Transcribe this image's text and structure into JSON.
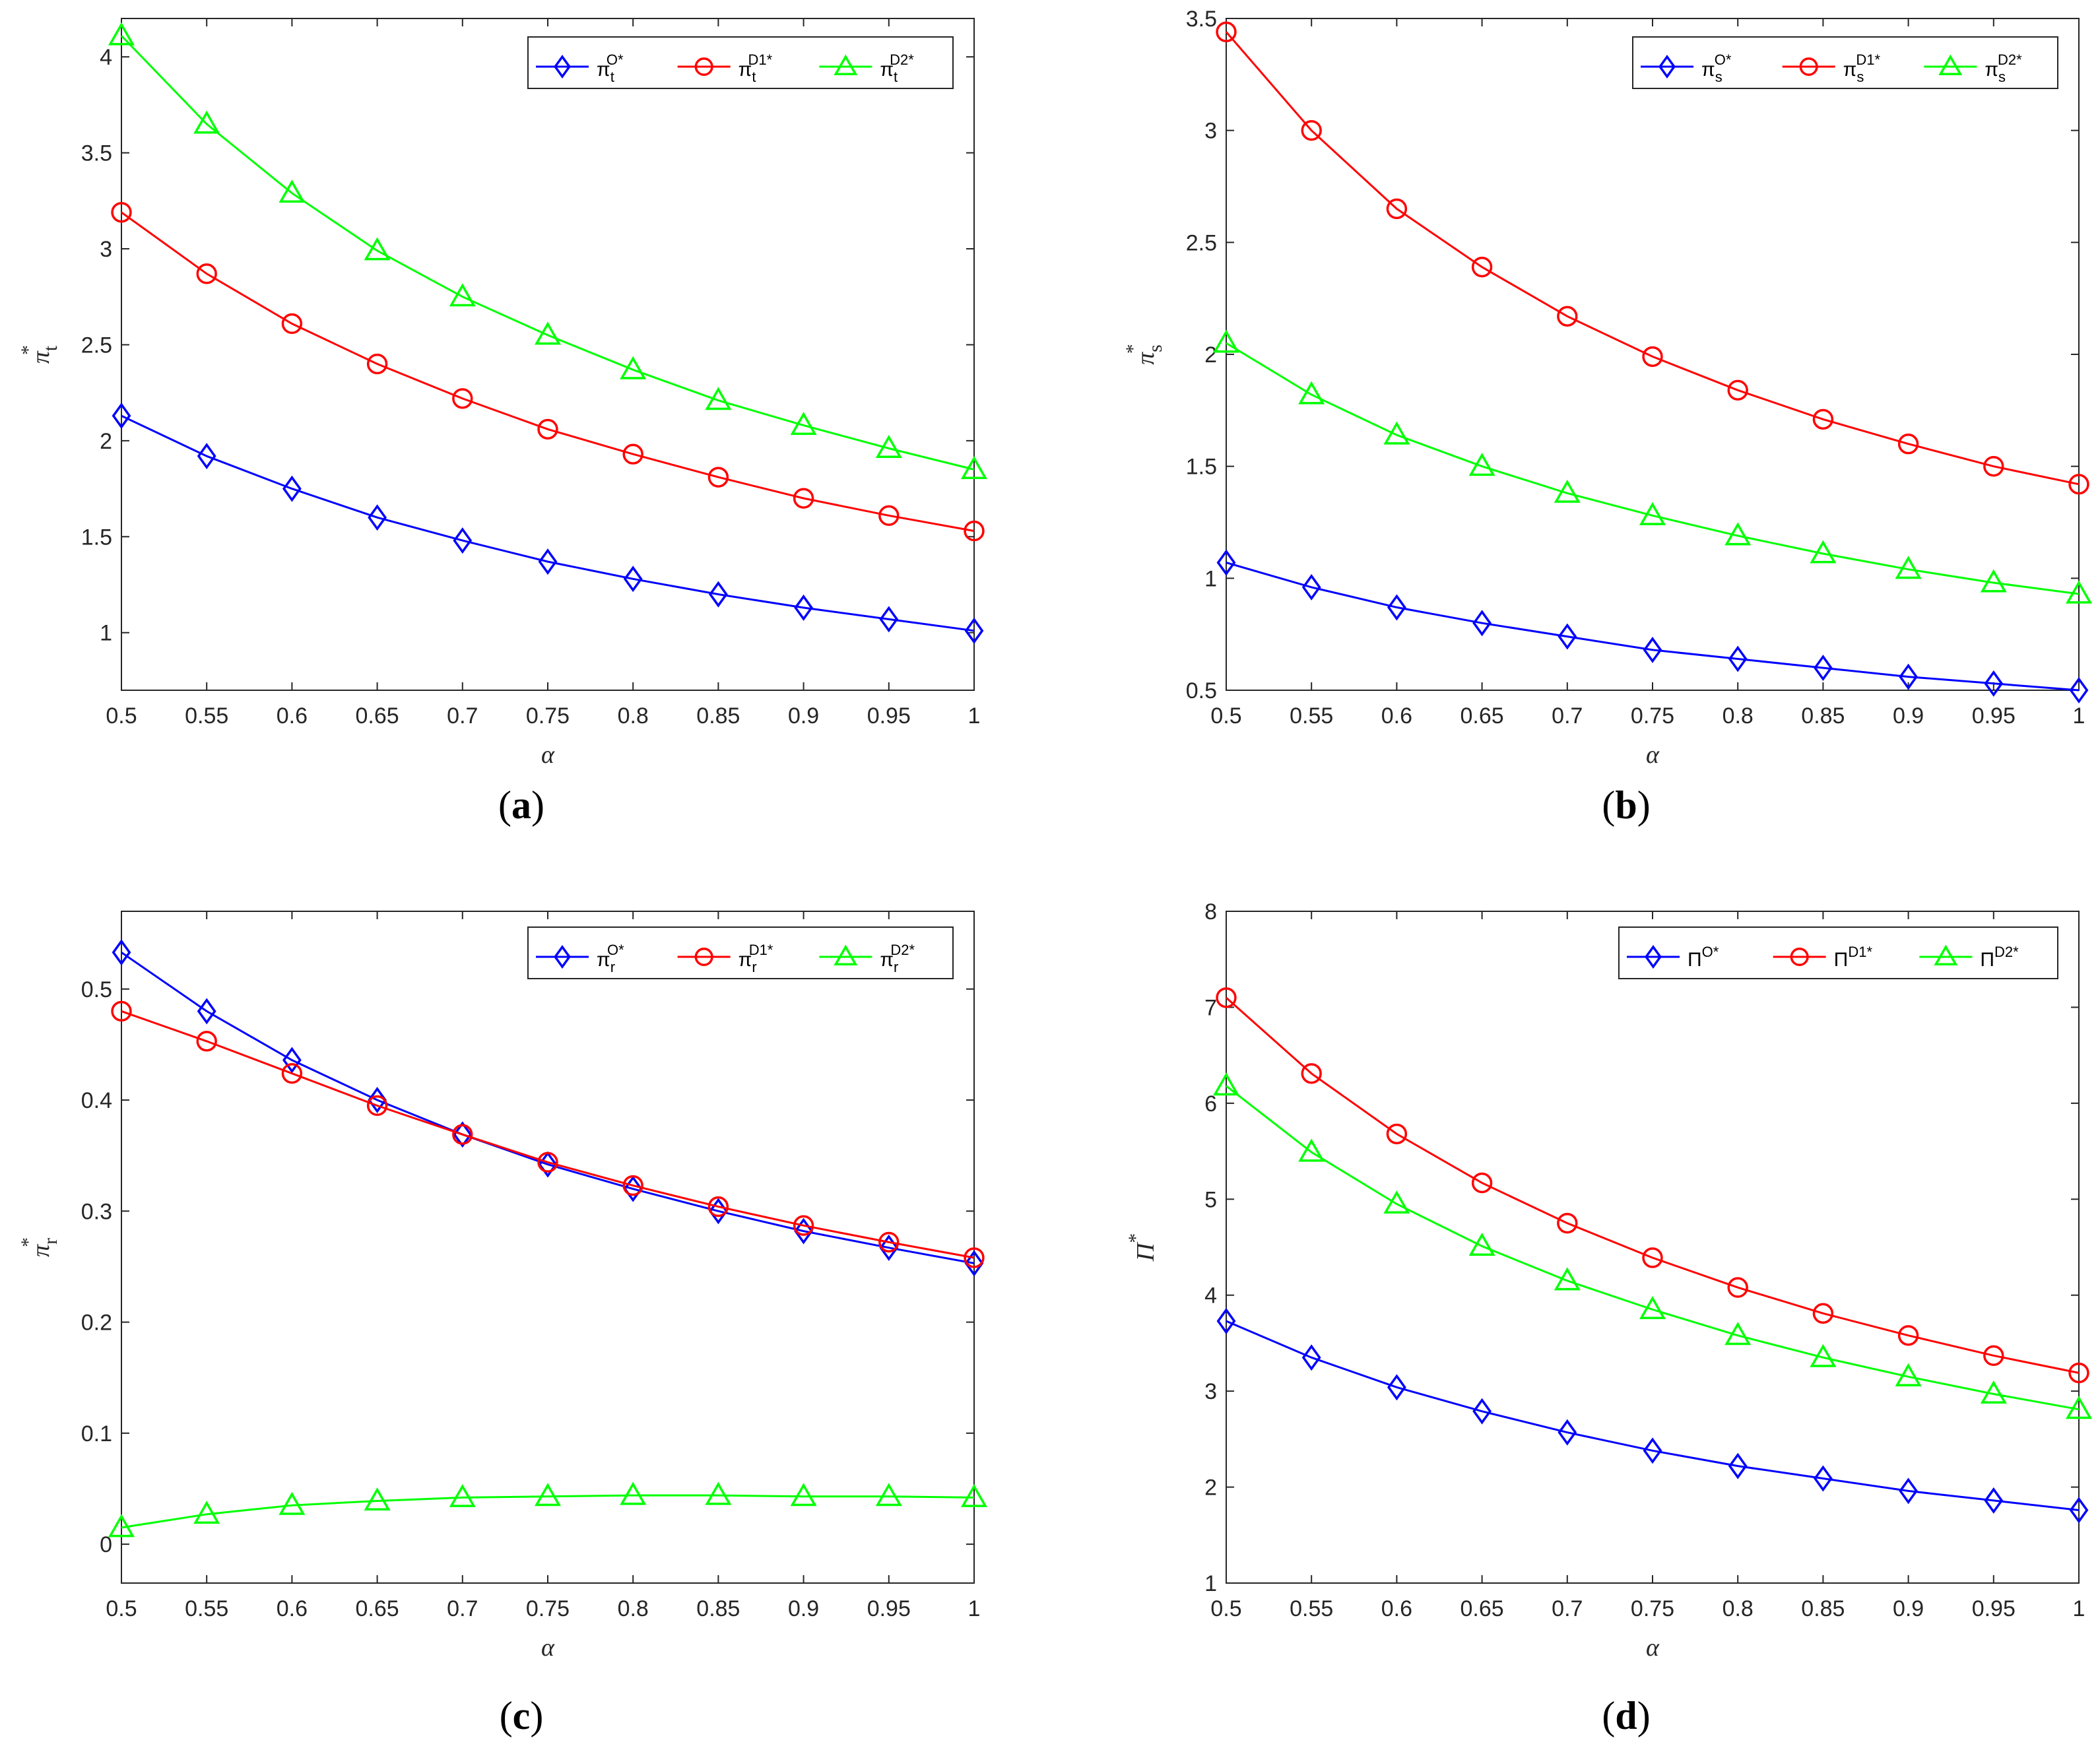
{
  "chart_data": [
    {
      "id": "a",
      "type": "line",
      "caption": {
        "open": "(",
        "letter": "a",
        "close": ")"
      },
      "xlabel": "α",
      "ylabel": {
        "base": "π",
        "sup": "*",
        "sub": "t"
      },
      "xlim": [
        0.5,
        1
      ],
      "ylim": [
        0.7,
        4.2
      ],
      "xticks": [
        "0.5",
        "0.55",
        "0.6",
        "0.65",
        "0.7",
        "0.75",
        "0.8",
        "0.85",
        "0.9",
        "0.95",
        "1"
      ],
      "yticks": [
        "1",
        "1.5",
        "2",
        "2.5",
        "3",
        "3.5",
        "4"
      ],
      "x": [
        0.5,
        0.55,
        0.6,
        0.65,
        0.7,
        0.75,
        0.8,
        0.85,
        0.9,
        0.95,
        1.0
      ],
      "series": [
        {
          "name": "π_t^{O*}",
          "base": "π",
          "sub": "t",
          "sup": "O*",
          "color": "#0000ff",
          "marker": "diamond",
          "values": [
            2.13,
            1.92,
            1.75,
            1.6,
            1.48,
            1.37,
            1.28,
            1.2,
            1.13,
            1.07,
            1.01
          ]
        },
        {
          "name": "π_t^{D1*}",
          "base": "π",
          "sub": "t",
          "sup": "D1*",
          "color": "#ff0000",
          "marker": "circle",
          "values": [
            3.19,
            2.87,
            2.61,
            2.4,
            2.22,
            2.06,
            1.93,
            1.81,
            1.7,
            1.61,
            1.53
          ]
        },
        {
          "name": "π_t^{D2*}",
          "base": "π",
          "sub": "t",
          "sup": "D2*",
          "color": "#00ff00",
          "marker": "triangle",
          "values": [
            4.11,
            3.65,
            3.29,
            2.99,
            2.75,
            2.55,
            2.37,
            2.21,
            2.08,
            1.96,
            1.85
          ]
        }
      ]
    },
    {
      "id": "b",
      "type": "line",
      "caption": {
        "open": "(",
        "letter": "b",
        "close": ")"
      },
      "xlabel": "α",
      "ylabel": {
        "base": "π",
        "sup": "*",
        "sub": "s"
      },
      "xlim": [
        0.5,
        1
      ],
      "ylim": [
        0.5,
        3.5
      ],
      "xticks": [
        "0.5",
        "0.55",
        "0.6",
        "0.65",
        "0.7",
        "0.75",
        "0.8",
        "0.85",
        "0.9",
        "0.95",
        "1"
      ],
      "yticks": [
        "0.5",
        "1",
        "1.5",
        "2",
        "2.5",
        "3",
        "3.5"
      ],
      "x": [
        0.5,
        0.55,
        0.6,
        0.65,
        0.7,
        0.75,
        0.8,
        0.85,
        0.9,
        0.95,
        1.0
      ],
      "series": [
        {
          "name": "π_s^{O*}",
          "base": "π",
          "sub": "s",
          "sup": "O*",
          "color": "#0000ff",
          "marker": "diamond",
          "values": [
            1.07,
            0.96,
            0.87,
            0.8,
            0.74,
            0.68,
            0.64,
            0.6,
            0.56,
            0.53,
            0.5
          ]
        },
        {
          "name": "π_s^{D1*}",
          "base": "π",
          "sub": "s",
          "sup": "D1*",
          "color": "#ff0000",
          "marker": "circle",
          "values": [
            3.44,
            3.0,
            2.65,
            2.39,
            2.17,
            1.99,
            1.84,
            1.71,
            1.6,
            1.5,
            1.42
          ]
        },
        {
          "name": "π_s^{D2*}",
          "base": "π",
          "sub": "s",
          "sup": "D2*",
          "color": "#00ff00",
          "marker": "triangle",
          "values": [
            2.05,
            1.82,
            1.64,
            1.5,
            1.38,
            1.28,
            1.19,
            1.11,
            1.04,
            0.98,
            0.93
          ]
        }
      ]
    },
    {
      "id": "c",
      "type": "line",
      "caption": {
        "open": "(",
        "letter": "c",
        "close": ")"
      },
      "xlabel": "α",
      "ylabel": {
        "base": "π",
        "sup": "*",
        "sub": "r"
      },
      "xlim": [
        0.5,
        1
      ],
      "ylim": [
        -0.035,
        0.57
      ],
      "xticks": [
        "0.5",
        "0.55",
        "0.6",
        "0.65",
        "0.7",
        "0.75",
        "0.8",
        "0.85",
        "0.9",
        "0.95",
        "1"
      ],
      "yticks": [
        "0",
        "0.1",
        "0.2",
        "0.3",
        "0.4",
        "0.5"
      ],
      "x": [
        0.5,
        0.55,
        0.6,
        0.65,
        0.7,
        0.75,
        0.8,
        0.85,
        0.9,
        0.95,
        1.0
      ],
      "series": [
        {
          "name": "π_r^{O*}",
          "base": "π",
          "sub": "r",
          "sup": "O*",
          "color": "#0000ff",
          "marker": "diamond",
          "values": [
            0.533,
            0.48,
            0.436,
            0.4,
            0.369,
            0.342,
            0.32,
            0.3,
            0.282,
            0.267,
            0.253
          ]
        },
        {
          "name": "π_r^{D1*}",
          "base": "π",
          "sub": "r",
          "sup": "D1*",
          "color": "#ff0000",
          "marker": "circle",
          "values": [
            0.48,
            0.453,
            0.424,
            0.395,
            0.369,
            0.344,
            0.323,
            0.304,
            0.287,
            0.272,
            0.258
          ]
        },
        {
          "name": "π_r^{D2*}",
          "base": "π",
          "sub": "r",
          "sup": "D2*",
          "color": "#00ff00",
          "marker": "triangle",
          "values": [
            0.015,
            0.027,
            0.035,
            0.039,
            0.042,
            0.043,
            0.044,
            0.044,
            0.043,
            0.043,
            0.042
          ]
        }
      ]
    },
    {
      "id": "d",
      "type": "line",
      "caption": {
        "open": "(",
        "letter": "d",
        "close": ")"
      },
      "xlabel": "α",
      "ylabel": {
        "base": "Π",
        "sup": "*",
        "sub": ""
      },
      "xlim": [
        0.5,
        1
      ],
      "ylim": [
        1,
        8
      ],
      "xticks": [
        "0.5",
        "0.55",
        "0.6",
        "0.65",
        "0.7",
        "0.75",
        "0.8",
        "0.85",
        "0.9",
        "0.95",
        "1"
      ],
      "yticks": [
        "1",
        "2",
        "3",
        "4",
        "5",
        "6",
        "7",
        "8"
      ],
      "x": [
        0.5,
        0.55,
        0.6,
        0.65,
        0.7,
        0.75,
        0.8,
        0.85,
        0.9,
        0.95,
        1.0
      ],
      "series": [
        {
          "name": "Π^{O*}",
          "base": "Π",
          "sub": "",
          "sup": "O*",
          "color": "#0000ff",
          "marker": "diamond",
          "values": [
            3.73,
            3.35,
            3.04,
            2.79,
            2.57,
            2.38,
            2.22,
            2.09,
            1.96,
            1.86,
            1.76
          ]
        },
        {
          "name": "Π^{D1*}",
          "base": "Π",
          "sub": "",
          "sup": "D1*",
          "color": "#ff0000",
          "marker": "circle",
          "values": [
            7.1,
            6.31,
            5.68,
            5.17,
            4.75,
            4.39,
            4.08,
            3.81,
            3.58,
            3.37,
            3.19
          ]
        },
        {
          "name": "Π^{D2*}",
          "base": "Π",
          "sub": "",
          "sup": "D2*",
          "color": "#00ff00",
          "marker": "triangle",
          "values": [
            6.18,
            5.49,
            4.95,
            4.51,
            4.15,
            3.85,
            3.58,
            3.35,
            3.15,
            2.97,
            2.81
          ]
        }
      ]
    }
  ]
}
